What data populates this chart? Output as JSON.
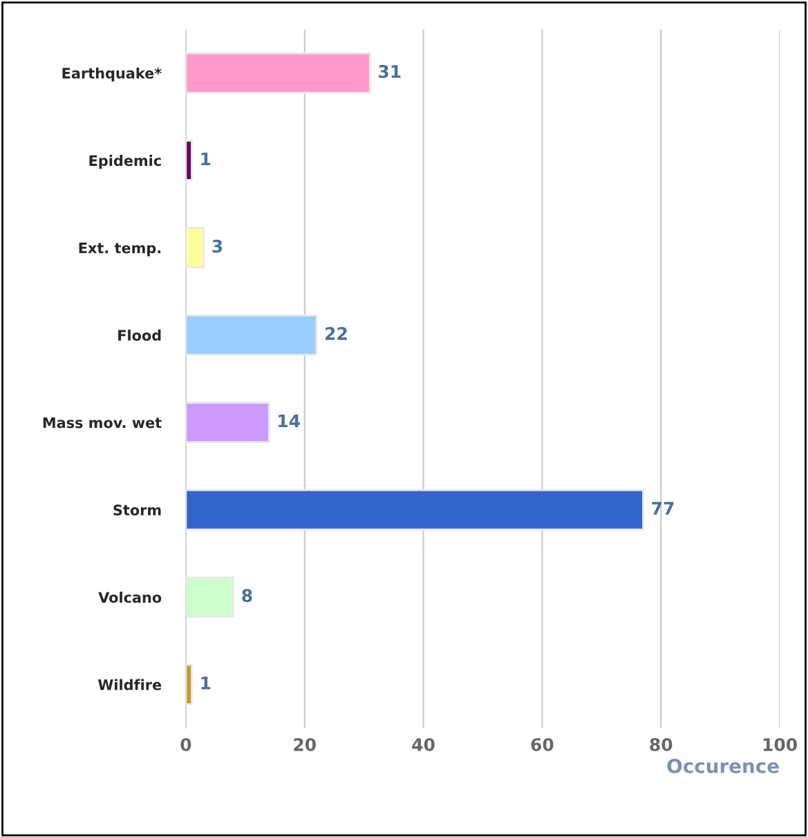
{
  "chart_data": {
    "type": "bar",
    "orientation": "horizontal",
    "xlabel": "Occurence",
    "categories": [
      "Earthquake*",
      "Epidemic",
      "Ext. temp.",
      "Flood",
      "Mass mov. wet",
      "Storm",
      "Volcano",
      "Wildfire"
    ],
    "values": [
      31,
      1,
      3,
      22,
      14,
      77,
      8,
      1
    ],
    "colors": [
      "#ff99cc",
      "#660066",
      "#ffff99",
      "#99ccff",
      "#cc99ff",
      "#3366cc",
      "#ccffcc",
      "#cc9933"
    ],
    "xlim": [
      0,
      100
    ],
    "xticks": [
      0,
      20,
      40,
      60,
      80,
      100
    ],
    "grid": "x",
    "data_labels": true
  }
}
